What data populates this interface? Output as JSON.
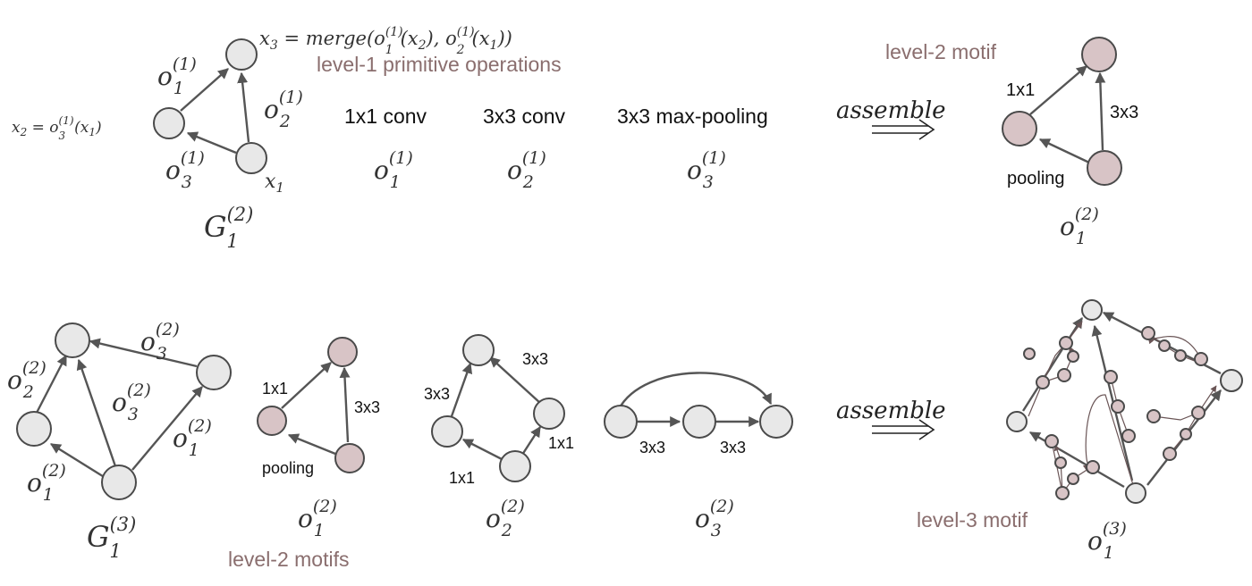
{
  "colors": {
    "accent": "#8a6e6e",
    "node_gray": "#e8e8e8",
    "node_pink": "#d8c4c6",
    "edge": "#555555"
  },
  "top": {
    "merge_eq": {
      "x3": "x",
      "x3_sub": "3",
      "eq": " = merge(o",
      "o1_sup": "(1)",
      "o1_sub": "1",
      "p1": "(x",
      "p1_sub": "2",
      "p1_end": "), o",
      "o2_sup": "(1)",
      "o2_sub": "2",
      "p2": "(x",
      "p2_sub": "1",
      "p2_end": "))"
    },
    "x2_eq": {
      "x2": "x",
      "x2_sub": "2",
      "eq": " = o",
      "o3_sup": "(1)",
      "o3_sub": "3",
      "arg": "(x",
      "arg_sub": "1",
      "arg_end": ")"
    },
    "level1_label": "level-1 primitive operations",
    "ops": [
      {
        "label": "1x1 conv",
        "sym": "o",
        "sub": "1",
        "sup": "(1)"
      },
      {
        "label": "3x3 conv",
        "sym": "o",
        "sub": "2",
        "sup": "(1)"
      },
      {
        "label": "3x3 max-pooling",
        "sym": "o",
        "sub": "3",
        "sup": "(1)"
      }
    ],
    "graph": {
      "edge_o1": {
        "sym": "o",
        "sub": "1",
        "sup": "(1)"
      },
      "edge_o2": {
        "sym": "o",
        "sub": "2",
        "sup": "(1)"
      },
      "edge_o3": {
        "sym": "o",
        "sub": "3",
        "sup": "(1)"
      },
      "x1": {
        "sym": "x",
        "sub": "1"
      },
      "name": {
        "sym": "G",
        "sub": "1",
        "sup": "(2)"
      }
    },
    "assemble": "assemble",
    "level2_label": "level-2 motif",
    "motif": {
      "e1": "1x1",
      "e2": "3x3",
      "e3": "pooling",
      "name": {
        "sym": "o",
        "sub": "1",
        "sup": "(2)"
      }
    }
  },
  "bottom": {
    "graph": {
      "edge_top": {
        "sym": "o",
        "sub": "3",
        "sup": "(2)"
      },
      "edge_left": {
        "sym": "o",
        "sub": "2",
        "sup": "(2)"
      },
      "edge_mid": {
        "sym": "o",
        "sub": "3",
        "sup": "(2)"
      },
      "edge_right": {
        "sym": "o",
        "sub": "1",
        "sup": "(2)"
      },
      "edge_bottom": {
        "sym": "o",
        "sub": "1",
        "sup": "(2)"
      },
      "name": {
        "sym": "G",
        "sub": "1",
        "sup": "(3)"
      }
    },
    "motif1": {
      "e1": "1x1",
      "e2": "3x3",
      "e3": "pooling",
      "name": {
        "sym": "o",
        "sub": "1",
        "sup": "(2)"
      }
    },
    "motif2": {
      "e1": "3x3",
      "e2": "3x3",
      "e3": "1x1",
      "e4": "1x1",
      "name": {
        "sym": "o",
        "sub": "2",
        "sup": "(2)"
      }
    },
    "motif3": {
      "e1": "3x3",
      "e2": "3x3",
      "name": {
        "sym": "o",
        "sub": "3",
        "sup": "(2)"
      }
    },
    "level2_motifs_label": "level-2 motifs",
    "assemble": "assemble",
    "level3_label": "level-3 motif",
    "level3_name": {
      "sym": "o",
      "sub": "1",
      "sup": "(3)"
    }
  }
}
